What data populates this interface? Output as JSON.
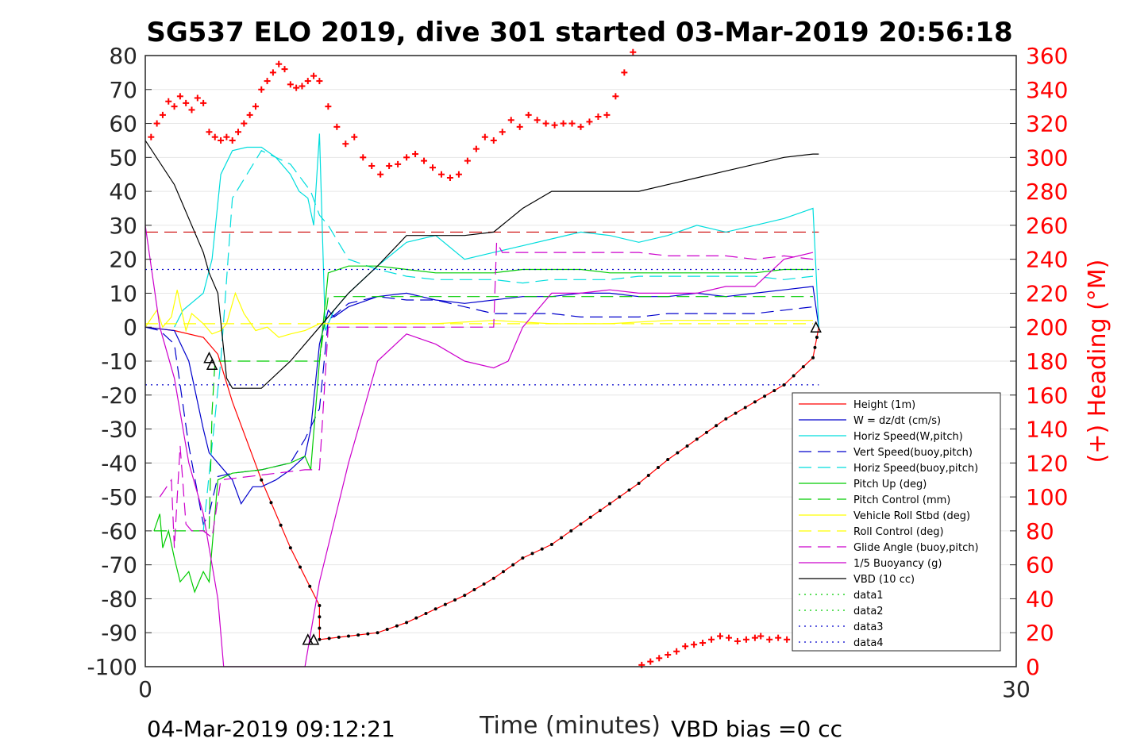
{
  "chart_data": {
    "type": "line",
    "title": "SG537 ELO 2019, dive 301 started 03-Mar-2019 20:56:18",
    "xlabel": "Time (minutes)",
    "ylabel_right": "(+) Heading (°M)",
    "xlim": [
      0,
      30
    ],
    "ylim_left": [
      -100,
      80
    ],
    "ylim_right": [
      0,
      360
    ],
    "x_ticks": [
      "0",
      "30"
    ],
    "y_ticks_left": [
      "80",
      "70",
      "60",
      "50",
      "40",
      "30",
      "20",
      "10",
      "0",
      "-10",
      "-20",
      "-30",
      "-40",
      "-50",
      "-60",
      "-70",
      "-80",
      "-90",
      "-100"
    ],
    "y_ticks_right": [
      "360",
      "340",
      "320",
      "300",
      "280",
      "260",
      "240",
      "220",
      "200",
      "180",
      "160",
      "140",
      "120",
      "100",
      "80",
      "60",
      "40",
      "20",
      "0"
    ],
    "grid": true,
    "legend_position": "bottom-right",
    "footer_left": "04-Mar-2019 09:12:21",
    "footer_right": "VBD bias =0 cc",
    "series": [
      {
        "name": "Height (1m)",
        "color": "#ff0000",
        "style": "solid",
        "x": [
          0,
          1,
          2,
          2.5,
          3,
          4,
          5,
          6,
          6,
          7,
          8,
          9,
          10,
          11,
          12,
          13,
          14,
          15,
          16,
          17,
          18,
          19,
          20,
          21,
          22,
          23,
          23.2
        ],
        "y": [
          0,
          -1,
          -3,
          -8,
          -22,
          -45,
          -65,
          -82,
          -92,
          -91,
          -90,
          -87,
          -83,
          -79,
          -74,
          -68,
          -64,
          -58,
          -52,
          -46,
          -39,
          -33,
          -27,
          -22,
          -17,
          -9,
          0
        ]
      },
      {
        "name": "W = dz/dt (cm/s)",
        "color": "#0000cc",
        "style": "solid",
        "x": [
          0,
          1,
          1.5,
          2,
          2.2,
          2.5,
          3,
          3.3,
          3.7,
          4,
          4.5,
          5,
          5.5,
          5.7,
          6,
          6.3,
          6.5,
          7,
          8,
          9,
          10,
          11,
          12,
          13,
          14,
          15,
          16,
          17,
          18,
          19,
          20,
          21,
          22,
          23,
          23.2
        ],
        "y": [
          0,
          -1,
          -10,
          -30,
          -37,
          -40,
          -45,
          -52,
          -47,
          -47,
          -45,
          -42,
          -38,
          -30,
          -5,
          5,
          3,
          6,
          9,
          10,
          8,
          7,
          8,
          9,
          9,
          10,
          10,
          9,
          9,
          10,
          9,
          10,
          11,
          12,
          0
        ]
      },
      {
        "name": "Horiz Speed(W,pitch)",
        "color": "#00dddd",
        "style": "solid",
        "x": [
          1,
          1.3,
          2,
          2.3,
          2.6,
          3,
          3.5,
          4,
          4.5,
          5,
          5.3,
          5.6,
          5.8,
          6,
          6.2,
          6.5,
          7,
          8,
          9,
          10,
          11,
          12,
          13,
          14,
          15,
          16,
          17,
          18,
          19,
          20,
          21,
          22,
          23,
          23.2
        ],
        "y": [
          0,
          5,
          10,
          20,
          45,
          52,
          53,
          53,
          50,
          45,
          40,
          38,
          30,
          57,
          -1,
          5,
          10,
          18,
          25,
          27,
          20,
          22,
          24,
          26,
          28,
          27,
          25,
          27,
          30,
          28,
          30,
          32,
          35,
          0
        ]
      },
      {
        "name": "Vert Speed(buoy,pitch)",
        "color": "#0000cc",
        "style": "dashed",
        "x": [
          0,
          0.5,
          1,
          1.5,
          2,
          2.2,
          2.5,
          3,
          4,
          5,
          5.5,
          6,
          6.3,
          7,
          8,
          9,
          10,
          11,
          12,
          13,
          14,
          15,
          16,
          17,
          18,
          19,
          20,
          21,
          22,
          23
        ],
        "y": [
          0,
          -1,
          -5,
          -35,
          -58,
          -55,
          -44,
          -43,
          -42,
          -40,
          -33,
          -24,
          2,
          7,
          9,
          8,
          8,
          6,
          4,
          4,
          4,
          3,
          3,
          3,
          4,
          4,
          4,
          4,
          5,
          6
        ]
      },
      {
        "name": "Horiz Speed(buoy,pitch)",
        "color": "#00dddd",
        "style": "dashed",
        "x": [
          2,
          2.3,
          2.6,
          3,
          4,
          5,
          5.7,
          6,
          6.3,
          7,
          8,
          9,
          10,
          11,
          12,
          13,
          14,
          15,
          16,
          17,
          18,
          19,
          20,
          21,
          22,
          23
        ],
        "y": [
          -60,
          -35,
          -10,
          38,
          52,
          48,
          40,
          33,
          30,
          20,
          17,
          15,
          14,
          14,
          14,
          13,
          14,
          14,
          14,
          15,
          15,
          15,
          15,
          15,
          14,
          15
        ]
      },
      {
        "name": "Pitch Up (deg)",
        "color": "#00cc00",
        "style": "solid",
        "x": [
          0.3,
          0.5,
          0.6,
          0.8,
          1,
          1.2,
          1.5,
          1.7,
          2,
          2.2,
          2.5,
          3,
          4,
          5,
          5.5,
          5.7,
          6,
          6.3,
          7,
          8,
          9,
          10,
          11,
          12,
          13,
          14,
          15,
          16,
          17,
          18,
          19,
          20,
          21,
          22,
          23
        ],
        "y": [
          -60,
          -55,
          -65,
          -60,
          -68,
          -75,
          -72,
          -78,
          -72,
          -75,
          -45,
          -43,
          -42,
          -40,
          -38,
          -42,
          -10,
          16,
          18,
          18,
          17,
          16,
          16,
          16,
          17,
          17,
          17,
          16,
          16,
          16,
          16,
          16,
          16,
          17,
          17
        ]
      },
      {
        "name": "Pitch Control (mm)",
        "color": "#00cc00",
        "style": "dashed",
        "x": [
          0.3,
          1,
          2.2,
          2.3,
          2.4,
          3,
          4,
          5,
          5.5,
          5.7,
          6,
          6.3,
          7,
          8,
          10,
          12,
          14,
          16,
          18,
          20,
          22,
          23
        ],
        "y": [
          -60,
          -60,
          -60,
          -25,
          -10,
          -10,
          -10,
          -10,
          -10,
          -10,
          -10,
          9,
          9,
          9,
          9,
          9,
          9,
          9,
          9,
          9,
          9,
          9
        ]
      },
      {
        "name": "Vehicle Roll Stbd (deg)",
        "color": "#ffff00",
        "style": "solid",
        "x": [
          0,
          0.4,
          0.6,
          0.9,
          1.1,
          1.4,
          1.6,
          2,
          2.3,
          2.6,
          2.8,
          3.1,
          3.4,
          3.8,
          4.2,
          4.6,
          5,
          5.5,
          6,
          7,
          8,
          10,
          12,
          14,
          16,
          18,
          20,
          22,
          23
        ],
        "y": [
          0,
          5,
          0,
          3,
          11,
          -1,
          4,
          1,
          -2,
          -1,
          1,
          10,
          4,
          -1,
          0,
          -3,
          -2,
          -1,
          1,
          1,
          1,
          1,
          2,
          1,
          1,
          2,
          2,
          2,
          2
        ]
      },
      {
        "name": "Roll Control (deg)",
        "color": "#ffff00",
        "style": "dashed",
        "x": [
          0,
          5,
          6,
          23
        ],
        "y": [
          1,
          1,
          1,
          1
        ]
      },
      {
        "name": "Glide Angle (buoy,pitch)",
        "color": "#cc00cc",
        "style": "dashed",
        "x": [
          0.5,
          0.9,
          1,
          1.2,
          1.4,
          1.6,
          2,
          2.3,
          2.6,
          5.5,
          6,
          6.3,
          7,
          8,
          9,
          10,
          11,
          12,
          12.1,
          12.3,
          13,
          14,
          15,
          16,
          17,
          18,
          19,
          20,
          21,
          22,
          23
        ],
        "y": [
          -50,
          -45,
          -65,
          -35,
          -58,
          -60,
          -60,
          -62,
          -45,
          -42,
          -42,
          0,
          0,
          0,
          0,
          0,
          0,
          0,
          25,
          22,
          22,
          22,
          22,
          22,
          22,
          21,
          21,
          21,
          20,
          21,
          20
        ]
      },
      {
        "name": "1/5 Buoyancy (g)",
        "color": "#cc00cc",
        "style": "solid",
        "x": [
          0,
          0.5,
          1,
          1.5,
          2,
          2.5,
          2.7,
          3,
          5.5,
          6,
          7,
          7.5,
          8,
          9,
          10,
          11,
          12,
          12.5,
          13,
          14,
          15,
          16,
          17,
          18,
          19,
          20,
          21,
          22,
          23
        ],
        "y": [
          30,
          0,
          -15,
          -40,
          -55,
          -80,
          -100,
          -100,
          -100,
          -75,
          -40,
          -25,
          -10,
          -2,
          -5,
          -10,
          -12,
          -10,
          0,
          10,
          10,
          11,
          10,
          10,
          10,
          12,
          12,
          20,
          22
        ]
      },
      {
        "name": "VBD (10 cc)",
        "color": "#000000",
        "style": "solid",
        "x": [
          0,
          1,
          1.5,
          2,
          2.2,
          2.5,
          2.8,
          3,
          4,
          5,
          6,
          7,
          8,
          9,
          10,
          11,
          12,
          13,
          14,
          15,
          16,
          17,
          18,
          19,
          20,
          21,
          22,
          23,
          23.2
        ],
        "y": [
          55,
          42,
          32,
          22,
          16,
          10,
          -15,
          -18,
          -18,
          -10,
          0,
          10,
          18,
          27,
          27,
          27,
          28,
          35,
          40,
          40,
          40,
          40,
          42,
          44,
          46,
          48,
          50,
          51,
          51
        ]
      },
      {
        "name": "data1",
        "color": "#00cc00",
        "style": "dotted",
        "x": [],
        "y": []
      },
      {
        "name": "data2",
        "color": "#00cc00",
        "style": "dotted",
        "x": [],
        "y": []
      },
      {
        "name": "data3",
        "color": "#0000cc",
        "style": "dotted",
        "x": [
          0,
          23.2
        ],
        "y": [
          17,
          17
        ]
      },
      {
        "name": "data4",
        "color": "#0000cc",
        "style": "dotted",
        "x": [
          0,
          23.2
        ],
        "y": [
          -17,
          -17
        ]
      }
    ],
    "reference_lines": [
      {
        "axis": "left",
        "y": 28,
        "color": "#cc0000",
        "style": "dashed",
        "x": [
          0,
          23.2
        ]
      }
    ],
    "heading_series": {
      "axis": "right",
      "color": "#ff0000",
      "marker": "+",
      "x": [
        0.2,
        0.4,
        0.6,
        0.8,
        1,
        1.2,
        1.4,
        1.6,
        1.8,
        2,
        2.2,
        2.4,
        2.6,
        2.8,
        3,
        3.2,
        3.4,
        3.6,
        3.8,
        4,
        4.2,
        4.4,
        4.6,
        4.8,
        5,
        5.2,
        5.4,
        5.6,
        5.8,
        6,
        6.3,
        6.6,
        6.9,
        7.2,
        7.5,
        7.8,
        8.1,
        8.4,
        8.7,
        9,
        9.3,
        9.6,
        9.9,
        10.2,
        10.5,
        10.8,
        11.1,
        11.4,
        11.7,
        12,
        12.3,
        12.6,
        12.9,
        13.2,
        13.5,
        13.8,
        14.1,
        14.4,
        14.7,
        15,
        15.3,
        15.6,
        15.9,
        16.2,
        16.5,
        16.8,
        17.1,
        17.4,
        17.7,
        18,
        18.3,
        18.6,
        18.9,
        19.2,
        19.5,
        19.8,
        20.1,
        20.4,
        20.7,
        21,
        21.2,
        21.5,
        21.8,
        22.1,
        22.4,
        22.7,
        23
      ],
      "y": [
        312,
        320,
        325,
        333,
        330,
        336,
        332,
        328,
        335,
        332,
        315,
        312,
        310,
        312,
        310,
        315,
        320,
        325,
        330,
        340,
        345,
        350,
        355,
        352,
        343,
        341,
        342,
        345,
        348,
        345,
        330,
        318,
        308,
        312,
        300,
        295,
        290,
        295,
        296,
        300,
        302,
        298,
        294,
        290,
        288,
        290,
        298,
        305,
        312,
        310,
        315,
        322,
        318,
        325,
        322,
        320,
        319,
        320,
        320,
        318,
        321,
        324,
        325,
        336,
        350,
        362,
        1,
        3,
        5,
        7,
        9,
        12,
        13,
        14,
        16,
        18,
        17,
        15,
        16,
        17,
        18,
        16,
        17,
        16,
        15,
        14,
        15
      ]
    },
    "markers_triangles": [
      {
        "x": 2.2,
        "y": -9
      },
      {
        "x": 2.3,
        "y": -11
      },
      {
        "x": 5.6,
        "y": -92
      },
      {
        "x": 5.8,
        "y": -92
      },
      {
        "x": 23.1,
        "y": 0
      }
    ]
  }
}
